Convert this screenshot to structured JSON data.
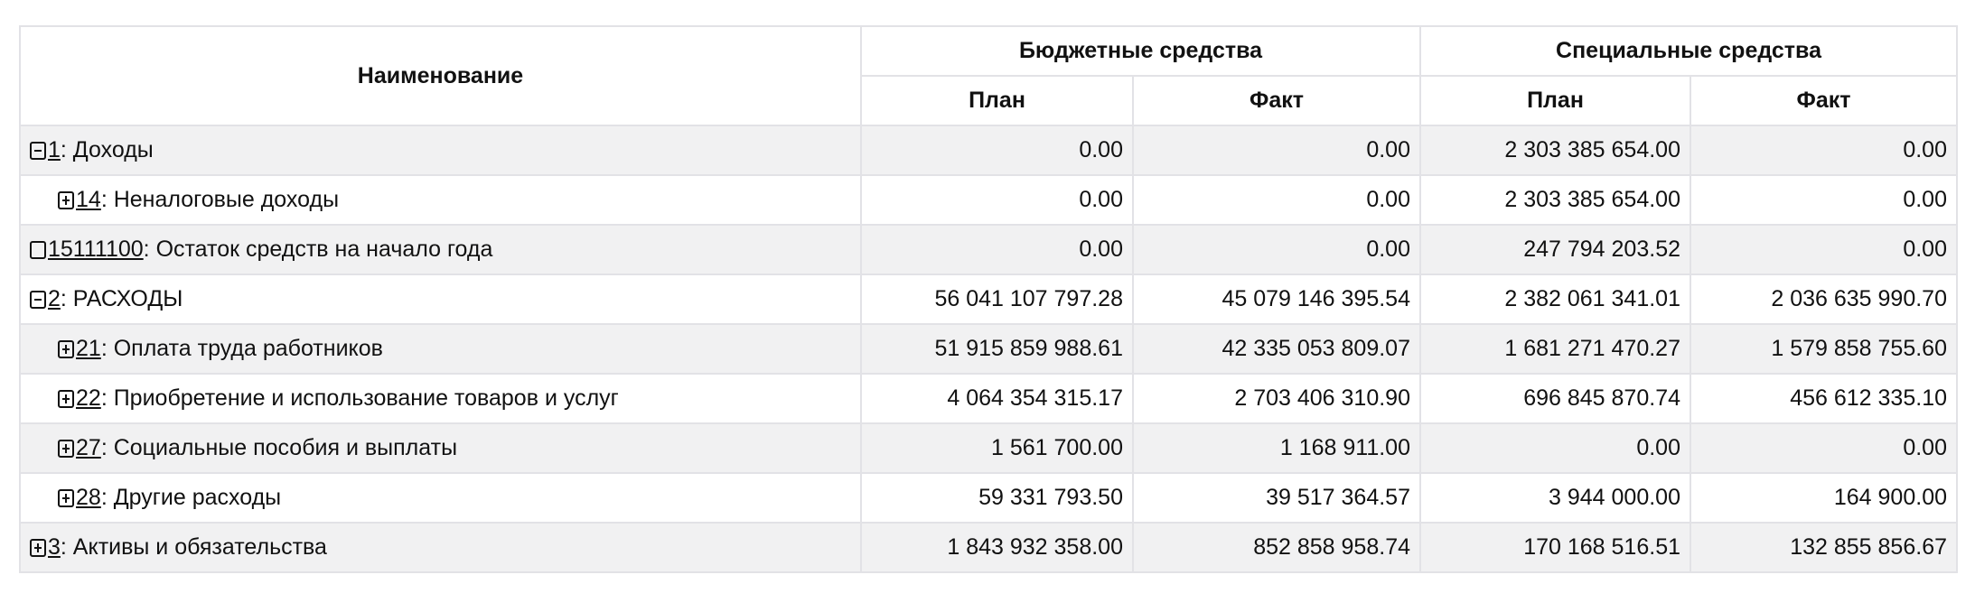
{
  "header": {
    "name": "Наименование",
    "budget": "Бюджетные средства",
    "special": "Специальные средства",
    "plan": "План",
    "fact": "Факт"
  },
  "rows": [
    {
      "toggle": "minus",
      "level": 0,
      "code": "1",
      "name": ": Доходы",
      "bp": "0.00",
      "bf": "0.00",
      "sp": "2 303 385 654.00",
      "sf": "0.00"
    },
    {
      "toggle": "plus",
      "level": 1,
      "code": "14",
      "name": ": Неналоговые доходы",
      "bp": "0.00",
      "bf": "0.00",
      "sp": "2 303 385 654.00",
      "sf": "0.00"
    },
    {
      "toggle": "empty",
      "level": 0,
      "code": "15111100",
      "name": ": Остаток средств на начало года",
      "bp": "0.00",
      "bf": "0.00",
      "sp": "247 794 203.52",
      "sf": "0.00"
    },
    {
      "toggle": "minus",
      "level": 0,
      "code": "2",
      "name": ": РАСХОДЫ",
      "bp": "56 041 107 797.28",
      "bf": "45 079 146 395.54",
      "sp": "2 382 061 341.01",
      "sf": "2 036 635 990.70"
    },
    {
      "toggle": "plus",
      "level": 1,
      "code": "21",
      "name": ": Оплата труда работников",
      "bp": "51 915 859 988.61",
      "bf": "42 335 053 809.07",
      "sp": "1 681 271 470.27",
      "sf": "1 579 858 755.60"
    },
    {
      "toggle": "plus",
      "level": 1,
      "code": "22",
      "name": ": Приобретение и использование товаров и услуг",
      "bp": "4 064 354 315.17",
      "bf": "2 703 406 310.90",
      "sp": "696 845 870.74",
      "sf": "456 612 335.10"
    },
    {
      "toggle": "plus",
      "level": 1,
      "code": "27",
      "name": ": Социальные пособия и выплаты",
      "bp": "1 561 700.00",
      "bf": "1 168 911.00",
      "sp": "0.00",
      "sf": "0.00"
    },
    {
      "toggle": "plus",
      "level": 1,
      "code": "28",
      "name": ": Другие расходы",
      "bp": "59 331 793.50",
      "bf": "39 517 364.57",
      "sp": "3 944 000.00",
      "sf": "164 900.00"
    },
    {
      "toggle": "plus",
      "level": 0,
      "code": "3",
      "name": ": Активы и обязательства",
      "bp": "1 843 932 358.00",
      "bf": "852 858 958.74",
      "sp": "170 168 516.51",
      "sf": "132 855 856.67"
    }
  ]
}
